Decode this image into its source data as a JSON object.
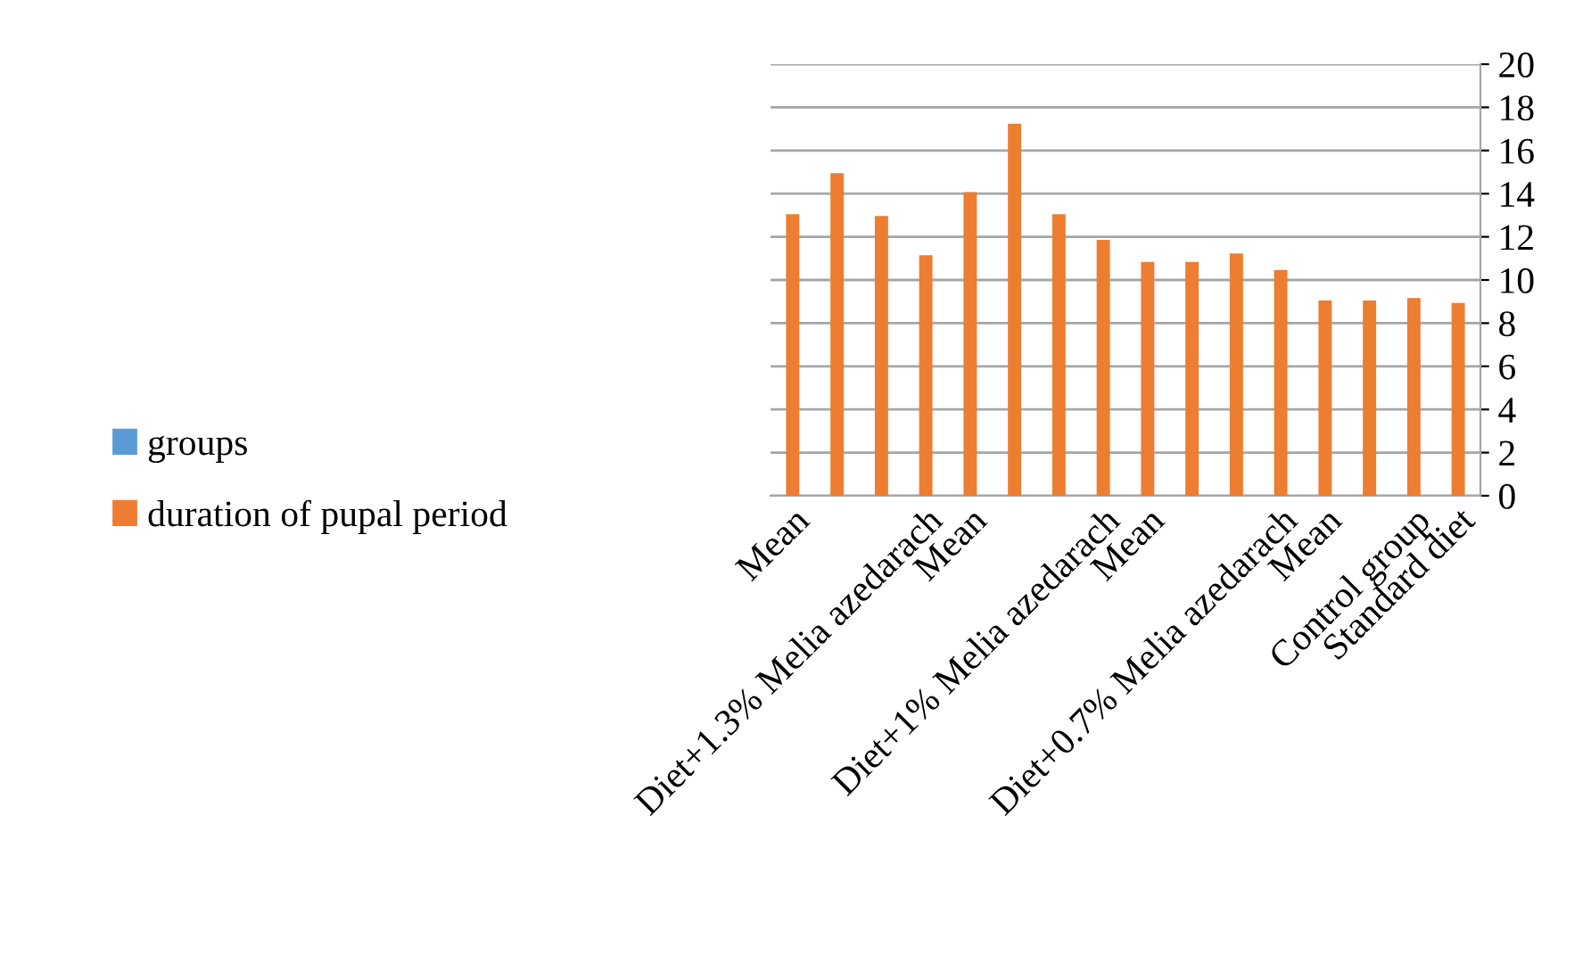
{
  "chart_data": {
    "type": "bar",
    "categories": [
      "Mean",
      null,
      null,
      "Diet+1.3% Melia azedarach",
      "Mean",
      null,
      null,
      "Diet+1% Melia azedarach",
      "Mean",
      null,
      null,
      "Diet+0.7% Melia azedarach",
      "Mean",
      null,
      "Control group",
      "Standard diet"
    ],
    "series": [
      {
        "name": "groups",
        "color": "#5b9bd5",
        "values": [
          null,
          null,
          null,
          null,
          null,
          null,
          null,
          null,
          null,
          null,
          null,
          null,
          null,
          null,
          null,
          null
        ]
      },
      {
        "name": "duration of pupal period",
        "color": "#ed7d31",
        "values": [
          13.05,
          14.95,
          12.97,
          11.15,
          14.07,
          17.24,
          13.05,
          11.86,
          10.84,
          10.84,
          11.23,
          10.46,
          9.05,
          9.05,
          9.16,
          8.94
        ]
      }
    ],
    "ylim": [
      0,
      20
    ],
    "yticks": [
      0,
      2,
      4,
      6,
      8,
      10,
      12,
      14,
      16,
      18,
      20
    ],
    "grid": "y",
    "legend": "left"
  }
}
